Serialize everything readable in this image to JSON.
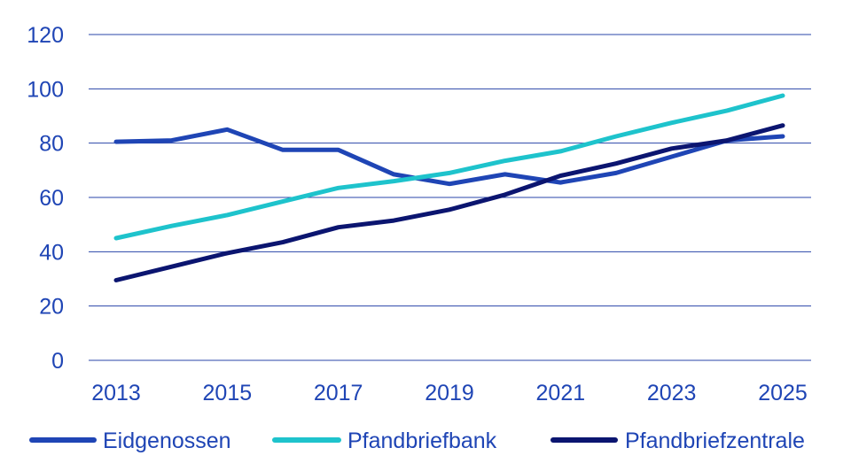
{
  "chart_data": {
    "type": "line",
    "title": "",
    "xlabel": "",
    "ylabel": "",
    "x": [
      2013,
      2014,
      2015,
      2016,
      2017,
      2018,
      2019,
      2020,
      2021,
      2022,
      2023,
      2024,
      2025
    ],
    "x_ticks": [
      "2013",
      "2015",
      "2017",
      "2019",
      "2021",
      "2023",
      "2025"
    ],
    "y_ticks": [
      "0",
      "20",
      "40",
      "60",
      "80",
      "100",
      "120"
    ],
    "xlim": [
      2013,
      2025
    ],
    "ylim": [
      0,
      120
    ],
    "grid": "horizontal",
    "legend_position": "bottom",
    "series": [
      {
        "name": "Eidgenossen",
        "color": "#1f45b5",
        "values": [
          80.5,
          81,
          85,
          77.5,
          77.5,
          68.5,
          65,
          68.5,
          65.5,
          69,
          75,
          81,
          82.5
        ]
      },
      {
        "name": "Pfandbriefbank",
        "color": "#1ec3cc",
        "values": [
          45,
          49.5,
          53.5,
          58.5,
          63.5,
          66,
          69,
          73.5,
          77,
          82.5,
          87.5,
          92,
          97.5
        ]
      },
      {
        "name": "Pfandbriefzentrale",
        "color": "#0b1570",
        "values": [
          29.5,
          34.5,
          39.5,
          43.5,
          49,
          51.5,
          55.5,
          61,
          68,
          72.5,
          78,
          81,
          86.5
        ]
      }
    ]
  },
  "colors": {
    "axis_text": "#1f45b5",
    "grid": "#2a45a8"
  }
}
